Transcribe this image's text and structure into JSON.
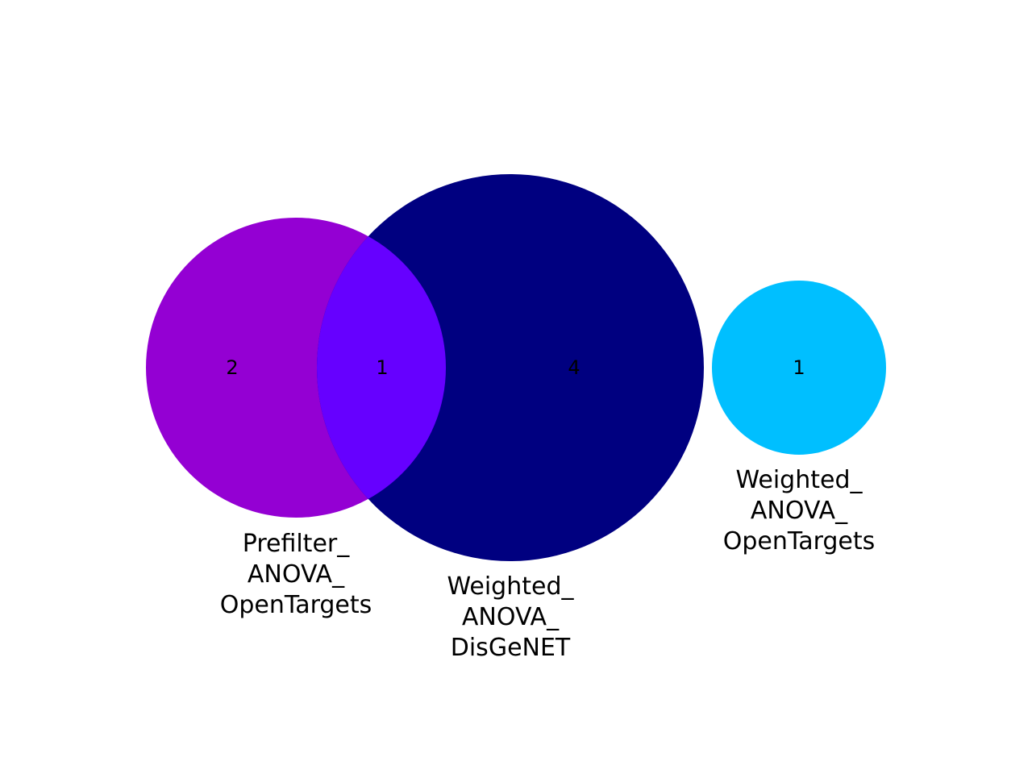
{
  "diagram": {
    "type": "venn",
    "sets": [
      {
        "id": "prefilter_anova_opentargets",
        "label_lines": [
          "Prefilter_",
          "ANOVA_",
          "OpenTargets"
        ],
        "color": "#9400D3"
      },
      {
        "id": "weighted_anova_disgenet",
        "label_lines": [
          "Weighted_",
          "ANOVA_",
          "DisGeNET"
        ],
        "color": "#000080"
      },
      {
        "id": "weighted_anova_opentargets",
        "label_lines": [
          "Weighted_",
          "ANOVA_",
          "OpenTargets"
        ],
        "color": "#00BFFF"
      }
    ],
    "intersection_color": "#6600FF",
    "regions": [
      {
        "sets": [
          "prefilter_anova_opentargets"
        ],
        "count": "2"
      },
      {
        "sets": [
          "prefilter_anova_opentargets",
          "weighted_anova_disgenet"
        ],
        "count": "1"
      },
      {
        "sets": [
          "weighted_anova_disgenet"
        ],
        "count": "4"
      },
      {
        "sets": [
          "weighted_anova_opentargets"
        ],
        "count": "1"
      }
    ]
  }
}
